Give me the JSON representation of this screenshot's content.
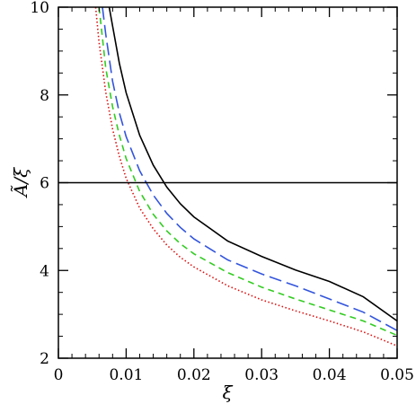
{
  "chart_data": {
    "type": "line",
    "title": "",
    "xlabel": "ξ",
    "ylabel": "Ã/ξ",
    "xlim": [
      0,
      0.05
    ],
    "ylim": [
      2,
      10
    ],
    "xticks": [
      0,
      0.01,
      0.02,
      0.03,
      0.04,
      0.05
    ],
    "xtick_labels": [
      "0",
      "0.01",
      "0.02",
      "0.03",
      "0.04",
      "0.05"
    ],
    "yticks": [
      2,
      4,
      6,
      8,
      10
    ],
    "ytick_labels": [
      "2",
      "4",
      "6",
      "8",
      "10"
    ],
    "grid": false,
    "legend": "none",
    "hline": {
      "y": 6,
      "color": "#000000",
      "style": "solid"
    },
    "series": [
      {
        "color": "#000000",
        "style": "solid",
        "x": [
          0.0075,
          0.008,
          0.009,
          0.01,
          0.012,
          0.014,
          0.016,
          0.018,
          0.02,
          0.025,
          0.03,
          0.035,
          0.04,
          0.045,
          0.05
        ],
        "y": [
          10.0,
          9.57,
          8.72,
          8.05,
          7.08,
          6.4,
          5.9,
          5.52,
          5.22,
          4.67,
          4.32,
          4.01,
          3.75,
          3.4,
          2.85
        ]
      },
      {
        "color": "#3355dd",
        "style": "long-dash",
        "x": [
          0.0065,
          0.007,
          0.008,
          0.009,
          0.01,
          0.012,
          0.014,
          0.016,
          0.018,
          0.02,
          0.025,
          0.03,
          0.035,
          0.04,
          0.045,
          0.05
        ],
        "y": [
          10.0,
          9.37,
          8.31,
          7.59,
          7.05,
          6.27,
          5.72,
          5.3,
          4.98,
          4.72,
          4.24,
          3.92,
          3.65,
          3.35,
          3.05,
          2.63
        ]
      },
      {
        "color": "#33cc22",
        "style": "short-dash",
        "x": [
          0.006,
          0.007,
          0.008,
          0.009,
          0.01,
          0.012,
          0.014,
          0.016,
          0.018,
          0.02,
          0.025,
          0.03,
          0.035,
          0.04,
          0.045,
          0.05
        ],
        "y": [
          10.0,
          8.6,
          7.73,
          7.08,
          6.55,
          5.8,
          5.28,
          4.9,
          4.61,
          4.38,
          3.95,
          3.62,
          3.35,
          3.1,
          2.85,
          2.52
        ]
      },
      {
        "color": "#dd1111",
        "style": "dotted",
        "x": [
          0.0055,
          0.006,
          0.007,
          0.008,
          0.009,
          0.01,
          0.012,
          0.014,
          0.016,
          0.018,
          0.02,
          0.025,
          0.03,
          0.035,
          0.04,
          0.045,
          0.05
        ],
        "y": [
          10.0,
          9.2,
          8.05,
          7.22,
          6.6,
          6.1,
          5.42,
          4.95,
          4.58,
          4.3,
          4.08,
          3.65,
          3.33,
          3.08,
          2.85,
          2.6,
          2.28
        ]
      }
    ]
  }
}
